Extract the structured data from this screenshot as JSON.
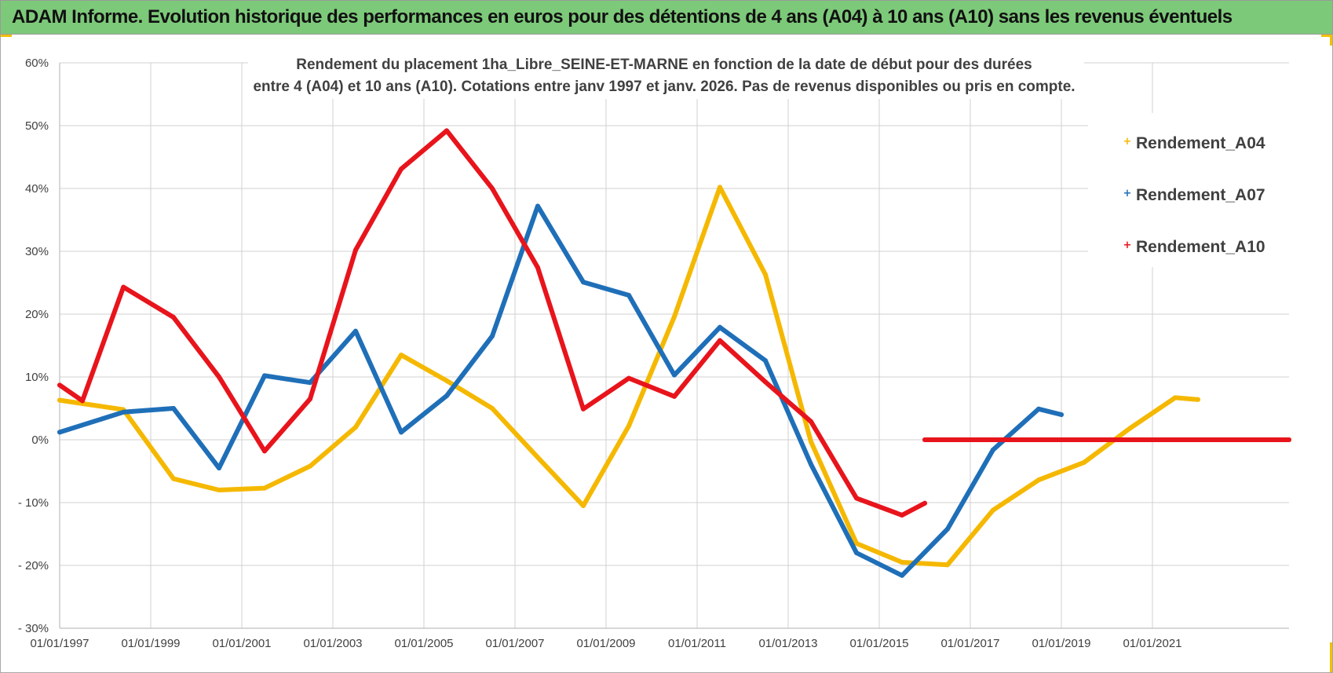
{
  "banner": {
    "title": "ADAM Informe. Evolution historique des performances en euros pour des détentions de 4 ans (A04) à 10 ans (A10) sans les revenus éventuels"
  },
  "colors": {
    "banner_bg": "#7dc97a",
    "A04": "#f5b800",
    "A07": "#1f6fb8",
    "A10": "#e8141c",
    "grid": "#d0d0d0"
  },
  "chart_data": {
    "type": "line",
    "title_lines": [
      "Rendement du placement 1ha_Libre_SEINE-ET-MARNE  en fonction de la date de début pour des durées",
      "entre 4 (A04) et 10 ans (A10).  Cotations entre janv 1997 et janv. 2026. Pas de revenus disponibles ou pris en compte."
    ],
    "x_axis": {
      "min": 1997.0,
      "max": 2024.0,
      "tick_values": [
        1997,
        1999,
        2001,
        2003,
        2005,
        2007,
        2009,
        2011,
        2013,
        2015,
        2017,
        2019,
        2021
      ],
      "tick_labels": [
        "01/01/1997",
        "01/01/1999",
        "01/01/2001",
        "01/01/2003",
        "01/01/2005",
        "01/01/2007",
        "01/01/2009",
        "01/01/2011",
        "01/01/2013",
        "01/01/2015",
        "01/01/2017",
        "01/01/2019",
        "01/01/2021"
      ],
      "gridlines": "vertical"
    },
    "y_axis": {
      "min": -30,
      "max": 60,
      "step": 10,
      "tick_labels": [
        "- 30%",
        "- 20%",
        "- 10%",
        "0%",
        "10%",
        "20%",
        "30%",
        "40%",
        "50%",
        "60%"
      ],
      "gridlines": "horizontal"
    },
    "legend": {
      "position": "top-right",
      "entries": [
        "Rendement_A04",
        "Rendement_A07",
        "Rendement_A10"
      ]
    },
    "series": [
      {
        "name": "Rendement_A04",
        "color": "#f5b800",
        "points": [
          [
            1997.0,
            6.3
          ],
          [
            1998.4,
            4.8
          ],
          [
            1999.5,
            -6.2
          ],
          [
            2000.5,
            -8.0
          ],
          [
            2001.5,
            -7.7
          ],
          [
            2002.5,
            -4.2
          ],
          [
            2003.5,
            2.0
          ],
          [
            2004.5,
            13.5
          ],
          [
            2005.5,
            9.4
          ],
          [
            2006.5,
            5.0
          ],
          [
            2007.5,
            -2.8
          ],
          [
            2008.5,
            -10.5
          ],
          [
            2009.5,
            2.2
          ],
          [
            2010.5,
            19.6
          ],
          [
            2011.5,
            40.2
          ],
          [
            2012.5,
            26.3
          ],
          [
            2013.5,
            -0.3
          ],
          [
            2014.5,
            -16.5
          ],
          [
            2015.5,
            -19.5
          ],
          [
            2016.5,
            -19.9
          ],
          [
            2017.5,
            -11.2
          ],
          [
            2018.5,
            -6.4
          ],
          [
            2019.5,
            -3.6
          ],
          [
            2020.5,
            1.8
          ],
          [
            2021.5,
            6.7
          ],
          [
            2022.0,
            6.4
          ]
        ]
      },
      {
        "name": "Rendement_A07",
        "color": "#1f6fb8",
        "points": [
          [
            1997.0,
            1.2
          ],
          [
            1998.4,
            4.4
          ],
          [
            1999.5,
            5.0
          ],
          [
            2000.5,
            -4.5
          ],
          [
            2001.5,
            10.2
          ],
          [
            2002.5,
            9.1
          ],
          [
            2003.5,
            17.3
          ],
          [
            2004.5,
            1.2
          ],
          [
            2005.5,
            7.0
          ],
          [
            2006.5,
            16.5
          ],
          [
            2007.5,
            37.2
          ],
          [
            2008.5,
            25.1
          ],
          [
            2009.5,
            23.0
          ],
          [
            2010.5,
            10.3
          ],
          [
            2011.5,
            17.9
          ],
          [
            2012.5,
            12.6
          ],
          [
            2013.5,
            -3.9
          ],
          [
            2014.5,
            -18.0
          ],
          [
            2015.5,
            -21.6
          ],
          [
            2016.5,
            -14.2
          ],
          [
            2017.5,
            -1.6
          ],
          [
            2018.5,
            4.9
          ],
          [
            2019.0,
            4.0
          ]
        ]
      },
      {
        "name": "Rendement_A10",
        "color": "#e8141c",
        "points": [
          [
            1997.0,
            8.7
          ],
          [
            1997.5,
            6.2
          ],
          [
            1998.4,
            24.3
          ],
          [
            1999.5,
            19.5
          ],
          [
            2000.5,
            10.0
          ],
          [
            2001.5,
            -1.8
          ],
          [
            2002.5,
            6.5
          ],
          [
            2003.5,
            30.2
          ],
          [
            2004.5,
            43.1
          ],
          [
            2005.5,
            49.2
          ],
          [
            2006.5,
            40.0
          ],
          [
            2007.5,
            27.4
          ],
          [
            2008.5,
            4.9
          ],
          [
            2009.5,
            9.8
          ],
          [
            2010.5,
            6.9
          ],
          [
            2011.5,
            15.8
          ],
          [
            2012.5,
            9.2
          ],
          [
            2013.5,
            2.9
          ],
          [
            2014.5,
            -9.3
          ],
          [
            2015.5,
            -12.0
          ],
          [
            2016.0,
            -10.1
          ]
        ]
      },
      {
        "name": "Rendement_A10",
        "color": "#e8141c",
        "points": [
          [
            2016.0,
            0.0
          ],
          [
            2024.0,
            0.0
          ]
        ]
      }
    ]
  }
}
